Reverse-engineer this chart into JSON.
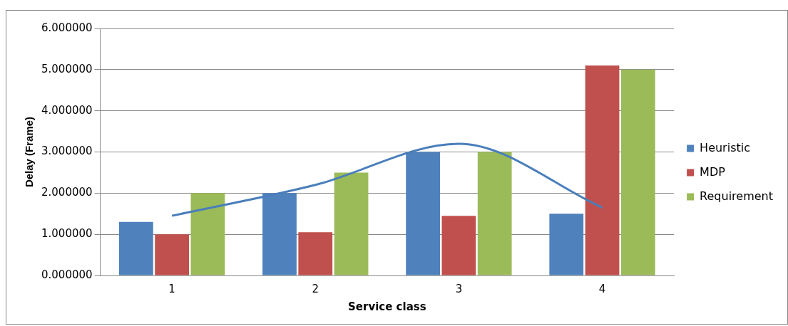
{
  "chart_data": {
    "type": "bar",
    "xlabel": "Service class",
    "ylabel": "Delay (Frame)",
    "categories": [
      "1",
      "2",
      "3",
      "4"
    ],
    "series": [
      {
        "name": "Heuristic",
        "color": "#4f81bd",
        "values": [
          1.3,
          2.0,
          3.0,
          1.5
        ]
      },
      {
        "name": "MDP",
        "color": "#c0504d",
        "values": [
          1.0,
          1.05,
          1.45,
          5.1
        ]
      },
      {
        "name": "Requirement",
        "color": "#9bbb59",
        "values": [
          2.0,
          2.5,
          3.0,
          5.0
        ]
      },
      {
        "type": "line",
        "color": "#4a7ebb",
        "values": [
          1.45,
          2.2,
          3.2,
          1.65
        ]
      }
    ],
    "ylim": [
      0,
      6
    ],
    "yticks": [
      {
        "value": 0,
        "label": "0.000000"
      },
      {
        "value": 1,
        "label": "1.000000"
      },
      {
        "value": 2,
        "label": "2.000000"
      },
      {
        "value": 3,
        "label": "3.000000"
      },
      {
        "value": 4,
        "label": "4.000000"
      },
      {
        "value": 5,
        "label": "5.000000"
      },
      {
        "value": 6,
        "label": "6.000000"
      }
    ],
    "grid": "y",
    "legend": "right",
    "marker": "none"
  }
}
